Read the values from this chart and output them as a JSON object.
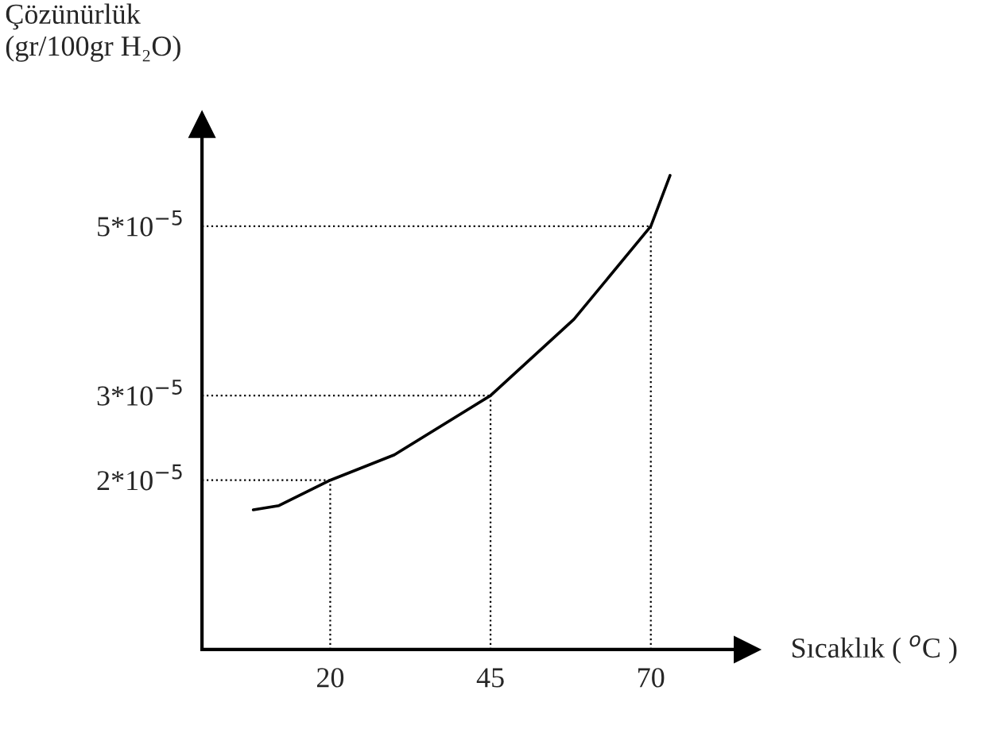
{
  "chart_data": {
    "type": "line",
    "xlabel": "Sıcaklık ( $^{o}$C )",
    "ylabel": "Çözünürlük\n(gr/100gr H₂O)",
    "series": [
      {
        "color": "#000000",
        "x": [
          8,
          12,
          20,
          30,
          45,
          58,
          70,
          73
        ],
        "values": [
          1.65e-05,
          1.7e-05,
          2e-05,
          2.3e-05,
          3e-05,
          3.9e-05,
          5e-05,
          5.6e-05
        ]
      }
    ],
    "xlim": [
      0,
      85
    ],
    "ylim": [
      0,
      6.2e-05
    ],
    "xticks": [
      20,
      45,
      70
    ],
    "yticks": [
      {
        "value": 2e-05,
        "label": "2*10$^{−5}$"
      },
      {
        "value": 3e-05,
        "label": "3*10$^{−5}$"
      },
      {
        "value": 5e-05,
        "label": "5*10$^{−5}$"
      }
    ],
    "ref_lines": [
      {
        "axis": "y",
        "value": 2e-05,
        "line_style": "dotted"
      },
      {
        "axis": "y",
        "value": 3e-05,
        "line_style": "dotted"
      },
      {
        "axis": "y",
        "value": 5e-05,
        "line_style": "dotted"
      },
      {
        "axis": "x",
        "value": 20,
        "line_style": "dotted"
      },
      {
        "axis": "x",
        "value": 45,
        "line_style": "dotted"
      },
      {
        "axis": "x",
        "value": 70,
        "line_style": "dotted"
      }
    ],
    "grid": false,
    "legend": false,
    "marker": "none",
    "line_style": "solid"
  }
}
